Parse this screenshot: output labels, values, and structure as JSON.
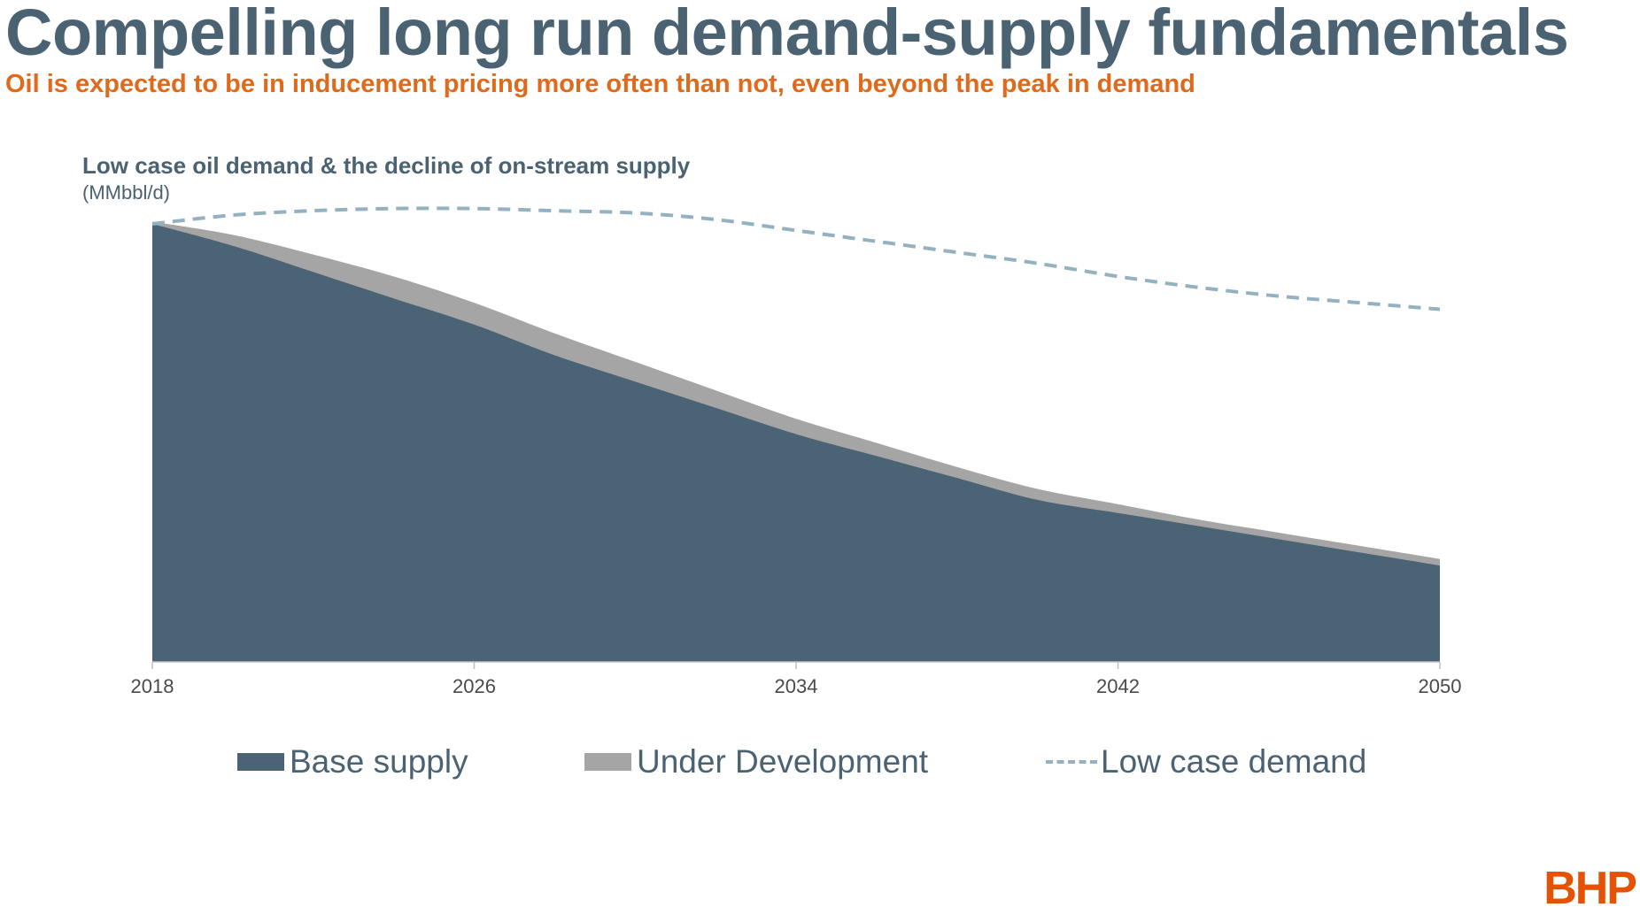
{
  "slide": {
    "title": "Compelling long run demand-supply fundamentals",
    "subtitle": "Oil is expected to be in inducement pricing more often than not, even beyond the peak in demand",
    "logo": "BHP"
  },
  "chart_data": {
    "type": "area",
    "title": "Low case oil demand & the decline of on-stream supply",
    "subtitle": "(MMbbl/d)",
    "x": [
      2018,
      2020,
      2022,
      2024,
      2026,
      2028,
      2030,
      2032,
      2034,
      2036,
      2038,
      2040,
      2042,
      2044,
      2046,
      2048,
      2050
    ],
    "xticks": [
      "2018",
      "2026",
      "2034",
      "2042",
      "2050"
    ],
    "xlim": [
      2018,
      2050
    ],
    "ylim": [
      0,
      100
    ],
    "grid": false,
    "stacked": true,
    "series": [
      {
        "name": "Base supply",
        "kind": "area",
        "color": "#4a6375",
        "values": [
          100,
          95,
          89,
          83,
          77,
          70,
          64,
          58,
          52,
          47,
          42,
          37,
          34,
          31,
          28,
          25,
          22
        ]
      },
      {
        "name": "Under Development",
        "kind": "area",
        "color": "#a5a5a5",
        "values": [
          0.5,
          2.5,
          4,
          5,
          5,
          5,
          4.5,
          4,
          3.5,
          3,
          2.5,
          2.5,
          2,
          1.5,
          1.5,
          1.5,
          1.5
        ]
      },
      {
        "name": "Low case demand",
        "kind": "dashed-line",
        "color": "#93b1bf",
        "values": [
          100,
          102,
          103,
          103.5,
          103.5,
          103,
          102.5,
          101,
          98.5,
          96,
          93.5,
          91,
          88,
          85.5,
          83.5,
          82,
          80.5
        ]
      }
    ],
    "legend_position": "bottom"
  }
}
